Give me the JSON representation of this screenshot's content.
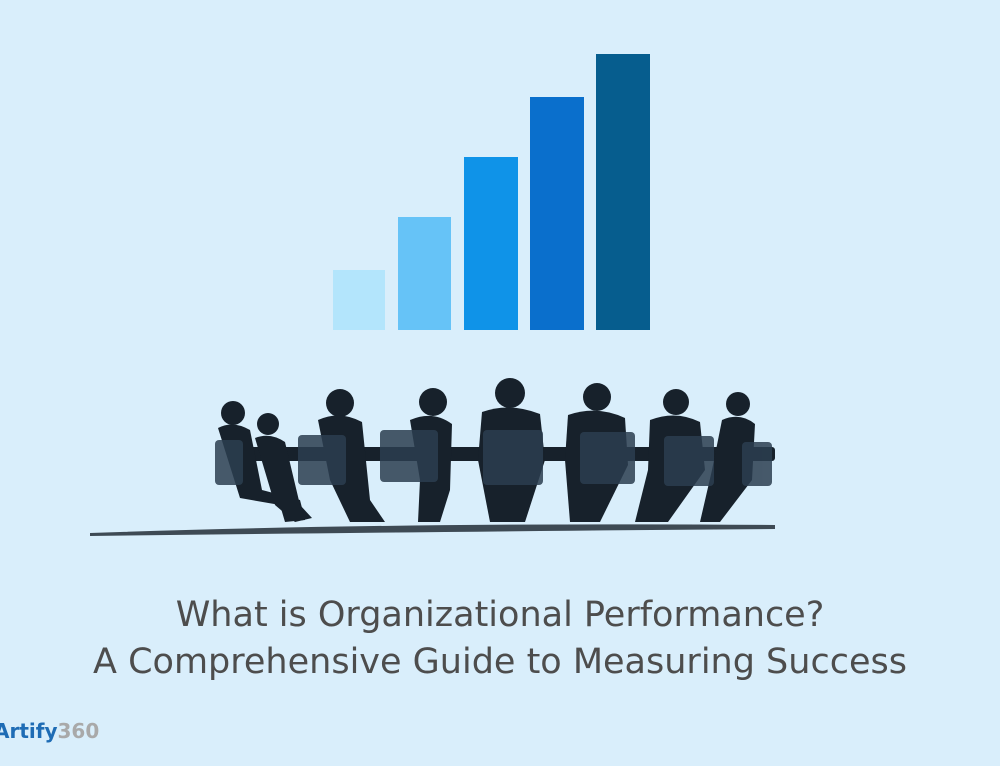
{
  "header": {
    "title_line1": "What is Organizational Performance?",
    "title_line2": "A Comprehensive Guide to Measuring Success"
  },
  "logo": {
    "brand": "Artify",
    "suffix": "360"
  }
}
